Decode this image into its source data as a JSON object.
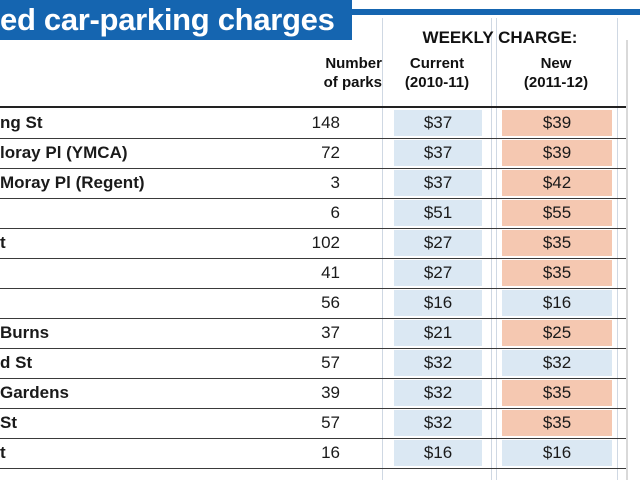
{
  "banner": {
    "title": "ed car-parking charges"
  },
  "table": {
    "weekly_header": "WEEKLY CHARGE:",
    "col_parks": [
      "Number",
      "of parks"
    ],
    "col_current": [
      "Current",
      "(2010-11)"
    ],
    "col_new": [
      "New",
      "(2011-12)"
    ],
    "colors": {
      "increase": "#f5c8b1",
      "unchanged": "#dbe8f3",
      "banner": "#1565b0"
    },
    "rows": [
      {
        "name": "ng St",
        "parks": "148",
        "current": "$37",
        "new": "$39",
        "increase": true
      },
      {
        "name": "loray Pl (YMCA)",
        "parks": "72",
        "current": "$37",
        "new": "$39",
        "increase": true
      },
      {
        "name": "Moray Pl (Regent)",
        "parks": "3",
        "current": "$37",
        "new": "$42",
        "increase": true
      },
      {
        "name": "",
        "parks": "6",
        "current": "$51",
        "new": "$55",
        "increase": true
      },
      {
        "name": "t",
        "parks": "102",
        "current": "$27",
        "new": "$35",
        "increase": true
      },
      {
        "name": "",
        "parks": "41",
        "current": "$27",
        "new": "$35",
        "increase": true
      },
      {
        "name": "",
        "parks": "56",
        "current": "$16",
        "new": "$16",
        "increase": false
      },
      {
        "name": "Burns",
        "parks": "37",
        "current": "$21",
        "new": "$25",
        "increase": true
      },
      {
        "name": "d St",
        "parks": "57",
        "current": "$32",
        "new": "$32",
        "increase": false
      },
      {
        "name": "Gardens",
        "parks": "39",
        "current": "$32",
        "new": "$35",
        "increase": true
      },
      {
        "name": "St",
        "parks": "57",
        "current": "$32",
        "new": "$35",
        "increase": true
      },
      {
        "name": "t",
        "parks": "16",
        "current": "$16",
        "new": "$16",
        "increase": false
      }
    ]
  }
}
